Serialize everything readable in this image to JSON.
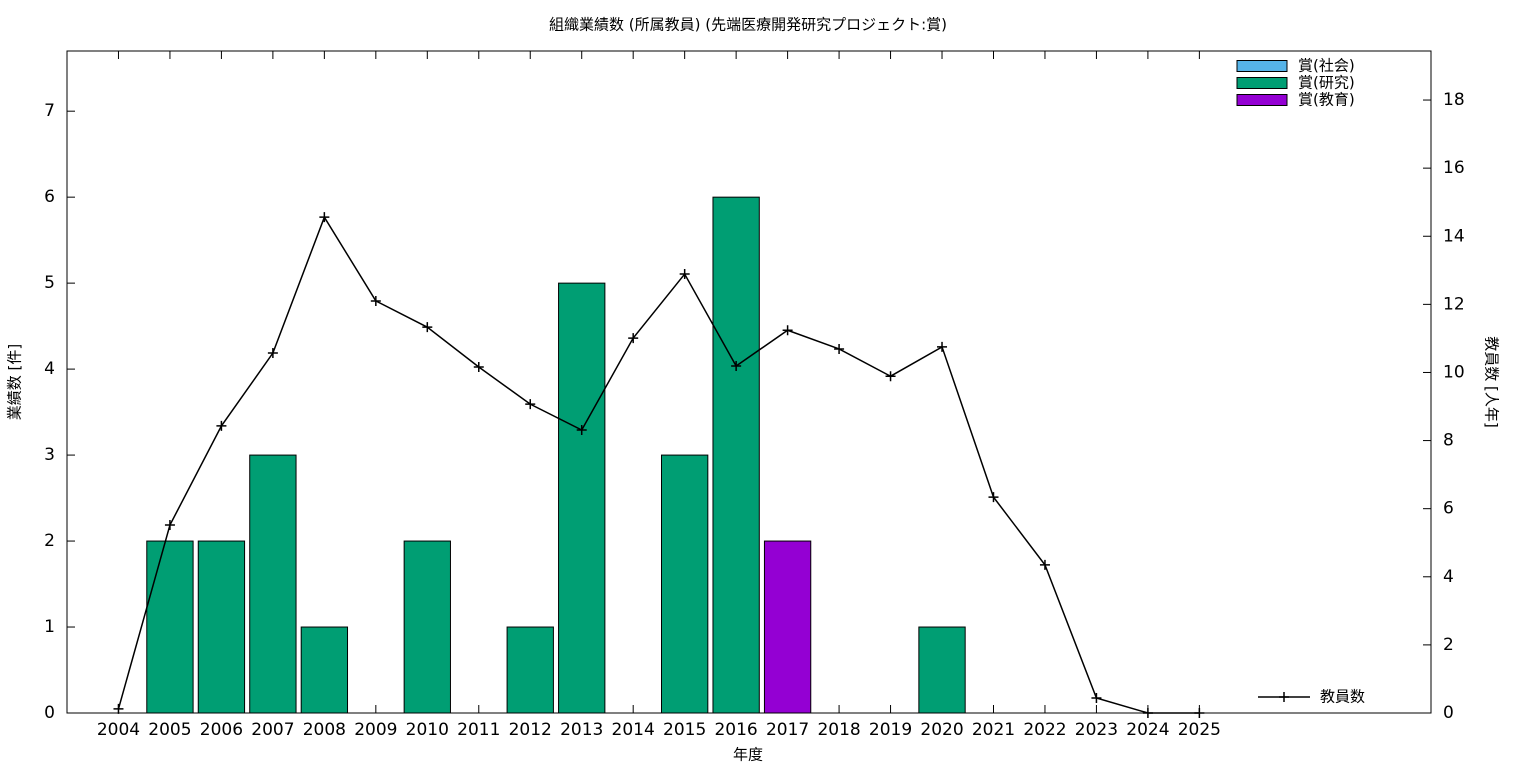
{
  "chart_data": {
    "type": "bar",
    "title": "組織業績数 (所属教員) (先端医療開発研究プロジェクト:賞)",
    "x_label": "年度",
    "y_label": "業績数 [件]",
    "y2_label": "教員数 [人年]",
    "categories": [
      "2004",
      "2005",
      "2006",
      "2007",
      "2008",
      "2009",
      "2010",
      "2011",
      "2012",
      "2013",
      "2014",
      "2015",
      "2016",
      "2017",
      "2018",
      "2019",
      "2020",
      "2021",
      "2022",
      "2023",
      "2024",
      "2025"
    ],
    "stacked": true,
    "legend": "top right",
    "series": [
      {
        "name": "賞(社会)",
        "color": "#56b4e9",
        "values": [
          0,
          0,
          0,
          0,
          0,
          0,
          0,
          0,
          0,
          0,
          0,
          0,
          0,
          0,
          0,
          0,
          0,
          0,
          0,
          0,
          0,
          0
        ]
      },
      {
        "name": "賞(研究)",
        "color": "#009e73",
        "values": [
          0,
          2,
          2,
          3,
          1,
          0,
          2,
          0,
          1,
          5,
          0,
          3,
          6,
          0,
          0,
          0,
          1,
          0,
          0,
          0,
          0,
          0
        ]
      },
      {
        "name": "賞(教育)",
        "color": "#9400d3",
        "values": [
          0,
          0,
          0,
          0,
          0,
          0,
          0,
          0,
          0,
          0,
          0,
          0,
          0,
          2,
          0,
          0,
          0,
          0,
          0,
          0,
          0,
          0
        ]
      },
      {
        "name": "教員数",
        "type": "line",
        "axis": "y2",
        "color": "#000000",
        "values": [
          0.12,
          5.52,
          8.43,
          10.57,
          14.56,
          12.1,
          11.33,
          10.16,
          9.07,
          8.31,
          11.01,
          12.89,
          10.19,
          11.24,
          10.69,
          9.89,
          10.75,
          6.34,
          4.35,
          0.44,
          0,
          0
        ]
      }
    ],
    "ylim": [
      0,
      7.7
    ],
    "yticks": [
      0,
      1,
      2,
      3,
      4,
      5,
      6,
      7
    ],
    "y2lim": [
      0,
      19.44
    ],
    "y2ticks": [
      0,
      2,
      4,
      6,
      8,
      10,
      12,
      14,
      16,
      18
    ]
  }
}
